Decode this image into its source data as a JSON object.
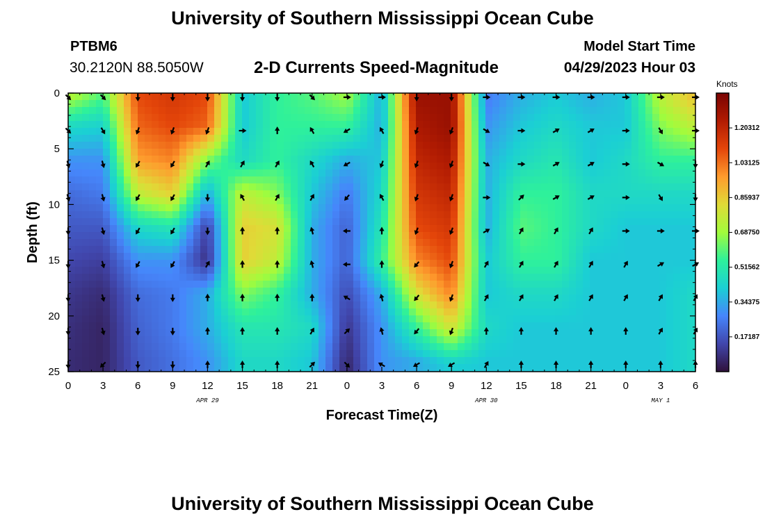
{
  "header": {
    "title": "University of Southern Mississippi Ocean Cube",
    "station_id": "PTBM6",
    "station_location": "30.2120N  88.5050W",
    "subtitle": "2-D Currents Speed-Magnitude",
    "model_start_label": "Model Start Time",
    "model_start_value": "04/29/2023 Hour 03"
  },
  "footer": {
    "title": "University of Southern Mississippi Ocean Cube"
  },
  "colors": {
    "scale": [
      "#30123b",
      "#4146ac",
      "#4686fb",
      "#1bcfd4",
      "#2ef19b",
      "#a2fc3c",
      "#e0da37",
      "#fe9b2d",
      "#e4460a",
      "#b11b02",
      "#7a0403"
    ],
    "arrow": "#000000",
    "frame": "#000000"
  },
  "chart_data": {
    "type": "heatmap",
    "title": "2-D Currents Speed-Magnitude",
    "xlabel": "Forecast Time(Z)",
    "ylabel": "Depth (ft)",
    "x_range_hours": [
      0,
      54
    ],
    "y_range_ft": [
      0,
      25
    ],
    "y_inverted": true,
    "x_tick_labels": [
      "0",
      "3",
      "6",
      "9",
      "12",
      "15",
      "18",
      "21",
      "0",
      "3",
      "6",
      "9",
      "12",
      "15",
      "18",
      "21",
      "0",
      "3",
      "6"
    ],
    "y_ticks": [
      0,
      5,
      10,
      15,
      20,
      25
    ],
    "date_labels": [
      {
        "label": "APR 29",
        "hour": 12
      },
      {
        "label": "APR 30",
        "hour": 36
      },
      {
        "label": "MAY 1",
        "hour": 51
      }
    ],
    "colorbar": {
      "label": "Knots",
      "min": 0,
      "max": 1.375,
      "tick_labels": [
        "1.20312",
        "1.03125",
        "0.85937",
        "0.68750",
        "0.51562",
        "0.34375",
        "0.17187"
      ],
      "tick_values": [
        1.20312,
        1.03125,
        0.85937,
        0.6875,
        0.51562,
        0.34375,
        0.17187
      ]
    },
    "speed_columns": {
      "hours": [
        0,
        3,
        6,
        9,
        12,
        15,
        18,
        21,
        24,
        27,
        30,
        33,
        36,
        39,
        42,
        45,
        48,
        51,
        54
      ],
      "depths_ft": [
        0,
        3,
        6,
        9,
        12,
        15,
        18,
        21,
        24,
        25
      ],
      "values": [
        [
          0.75,
          0.45,
          0.3,
          0.22,
          0.18,
          0.14,
          0.1,
          0.08,
          0.07,
          0.07
        ],
        [
          0.6,
          0.42,
          0.3,
          0.25,
          0.18,
          0.12,
          0.07,
          0.05,
          0.05,
          0.05
        ],
        [
          1.1,
          1.05,
          0.95,
          0.75,
          0.45,
          0.3,
          0.22,
          0.2,
          0.18,
          0.18
        ],
        [
          1.15,
          1.1,
          1.0,
          0.85,
          0.5,
          0.3,
          0.25,
          0.25,
          0.23,
          0.23
        ],
        [
          1.1,
          1.05,
          0.65,
          0.35,
          0.12,
          0.08,
          0.35,
          0.35,
          0.3,
          0.3
        ],
        [
          0.4,
          0.4,
          0.45,
          0.75,
          0.85,
          0.85,
          0.65,
          0.5,
          0.45,
          0.45
        ],
        [
          0.55,
          0.55,
          0.55,
          0.65,
          0.8,
          0.75,
          0.55,
          0.5,
          0.45,
          0.45
        ],
        [
          0.6,
          0.55,
          0.45,
          0.4,
          0.35,
          0.35,
          0.35,
          0.45,
          0.4,
          0.4
        ],
        [
          0.7,
          0.55,
          0.35,
          0.25,
          0.2,
          0.2,
          0.15,
          0.1,
          0.06,
          0.05
        ],
        [
          0.35,
          0.35,
          0.4,
          0.45,
          0.5,
          0.55,
          0.35,
          0.3,
          0.3,
          0.3
        ],
        [
          1.3,
          1.25,
          1.2,
          1.15,
          1.1,
          1.0,
          0.8,
          0.55,
          0.35,
          0.35
        ],
        [
          1.3,
          1.3,
          1.25,
          1.2,
          1.15,
          1.1,
          1.0,
          0.8,
          0.45,
          0.4
        ],
        [
          0.25,
          0.3,
          0.35,
          0.35,
          0.35,
          0.4,
          0.4,
          0.45,
          0.4,
          0.4
        ],
        [
          0.35,
          0.4,
          0.45,
          0.55,
          0.6,
          0.55,
          0.45,
          0.4,
          0.4,
          0.4
        ],
        [
          0.4,
          0.45,
          0.5,
          0.55,
          0.55,
          0.55,
          0.45,
          0.4,
          0.4,
          0.4
        ],
        [
          0.35,
          0.4,
          0.4,
          0.45,
          0.45,
          0.4,
          0.4,
          0.4,
          0.4,
          0.4
        ],
        [
          0.4,
          0.4,
          0.45,
          0.45,
          0.4,
          0.4,
          0.4,
          0.4,
          0.4,
          0.4
        ],
        [
          0.75,
          0.65,
          0.55,
          0.45,
          0.4,
          0.4,
          0.4,
          0.4,
          0.4,
          0.4
        ],
        [
          0.9,
          0.75,
          0.55,
          0.45,
          0.4,
          0.4,
          0.45,
          0.45,
          0.45,
          0.45
        ]
      ]
    },
    "arrow_directions_deg": {
      "hours": [
        0,
        3,
        6,
        9,
        12,
        15,
        18,
        21,
        24,
        27,
        30,
        33,
        36,
        39,
        42,
        45,
        48,
        51,
        54
      ],
      "depths_ft": [
        0,
        3,
        6,
        9,
        12,
        15,
        18,
        21,
        24
      ],
      "values": [
        [
          135,
          135,
          180,
          180,
          180,
          180,
          180,
          135,
          90,
          90,
          180,
          180,
          90,
          90,
          90,
          90,
          90,
          90,
          90
        ],
        [
          135,
          150,
          200,
          200,
          200,
          90,
          0,
          330,
          240,
          330,
          200,
          200,
          120,
          90,
          60,
          60,
          90,
          150,
          90
        ],
        [
          165,
          165,
          210,
          210,
          30,
          30,
          30,
          330,
          240,
          200,
          200,
          200,
          120,
          90,
          60,
          60,
          90,
          120,
          180
        ],
        [
          165,
          165,
          210,
          210,
          180,
          330,
          30,
          30,
          220,
          330,
          200,
          200,
          90,
          45,
          60,
          60,
          90,
          150,
          180
        ],
        [
          180,
          165,
          210,
          210,
          180,
          0,
          0,
          345,
          270,
          0,
          200,
          200,
          60,
          30,
          30,
          30,
          90,
          90,
          90
        ],
        [
          180,
          165,
          210,
          210,
          30,
          0,
          0,
          345,
          270,
          0,
          220,
          200,
          30,
          30,
          30,
          30,
          30,
          60,
          60
        ],
        [
          180,
          165,
          180,
          180,
          0,
          0,
          0,
          0,
          300,
          345,
          220,
          200,
          30,
          30,
          30,
          30,
          30,
          30,
          30
        ],
        [
          180,
          165,
          180,
          180,
          0,
          0,
          0,
          30,
          45,
          345,
          220,
          200,
          0,
          0,
          0,
          0,
          0,
          30,
          30
        ],
        [
          180,
          225,
          180,
          180,
          0,
          0,
          0,
          45,
          135,
          300,
          240,
          240,
          30,
          0,
          0,
          0,
          0,
          0,
          0
        ]
      ]
    }
  }
}
